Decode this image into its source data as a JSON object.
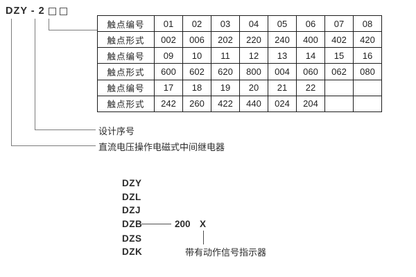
{
  "model": {
    "prefix": "DZY - 2",
    "placeholder_boxes": 2
  },
  "table": {
    "rows": [
      {
        "label": "触点编号",
        "cells": [
          "01",
          "02",
          "03",
          "04",
          "05",
          "06",
          "07",
          "08"
        ]
      },
      {
        "label": "触点形式",
        "cells": [
          "002",
          "006",
          "202",
          "220",
          "240",
          "400",
          "402",
          "420"
        ]
      },
      {
        "label": "触点编号",
        "cells": [
          "09",
          "10",
          "11",
          "12",
          "13",
          "14",
          "15",
          "16"
        ]
      },
      {
        "label": "触点形式",
        "cells": [
          "600",
          "602",
          "620",
          "800",
          "004",
          "060",
          "062",
          "080"
        ]
      },
      {
        "label": "触点编号",
        "cells": [
          "17",
          "18",
          "19",
          "20",
          "21",
          "22",
          "",
          ""
        ]
      },
      {
        "label": "触点形式",
        "cells": [
          "242",
          "260",
          "422",
          "440",
          "024",
          "204",
          "",
          ""
        ]
      }
    ]
  },
  "callouts": {
    "design_serial": "设计序号",
    "relay_description": "直流电压操作电磁式中间继电器"
  },
  "series_list": {
    "items": [
      "DZY",
      "DZL",
      "DZJ",
      "DZB",
      "DZS",
      "DZK"
    ],
    "dzb_suffix_number": "200",
    "dzb_suffix_mark": "X",
    "indicator_note": "带有动作信号指示器"
  },
  "colors": {
    "background": "#ffffff",
    "text": "#2b2b2b",
    "table_border": "#1c1c1c",
    "callout_line": "#7d7d7d"
  }
}
